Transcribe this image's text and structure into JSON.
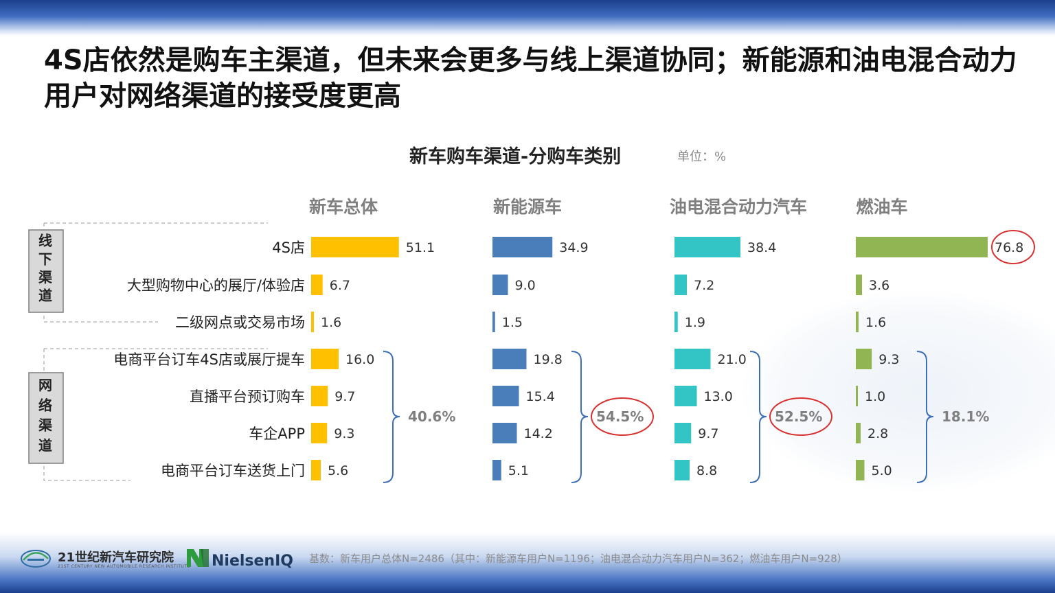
{
  "slide": {
    "title": "4S店依然是购车主渠道，但未来会更多与线上渠道协同；新能源和油电混合动力用户对网络渠道的接受度更高",
    "unit": "单位：%",
    "footnote": "基数：新车用户总体N=2486（其中：新能源车用户N=1196；油电混合动力汽车用户N=362；燃油车用户N=928）",
    "logo1_name": "21世纪新汽车研究院",
    "logo1_sub": "21ST CENTURY NEW AUTOMOBILE RESEARCH INSTITUTE",
    "logo2_name": "NielsenIQ"
  },
  "chart_data": {
    "type": "bar",
    "title": "新车购车渠道-分购车类别",
    "orientation": "horizontal",
    "groups": [
      {
        "label": "线下渠道",
        "categories": [
          "4S店",
          "大型购物中心的展厅/体验店",
          "二级网点或交易市场"
        ]
      },
      {
        "label": "网络渠道",
        "categories": [
          "电商平台订车4S店或展厅提车",
          "直播平台预订购车",
          "车企APP",
          "电商平台订车送货上门"
        ]
      }
    ],
    "categories": [
      "4S店",
      "大型购物中心的展厅/体验店",
      "二级网点或交易市场",
      "电商平台订车4S店或展厅提车",
      "直播平台预订购车",
      "车企APP",
      "电商平台订车送货上门"
    ],
    "series": [
      {
        "name": "新车总体",
        "color": "#ffc000",
        "values": [
          51.1,
          6.7,
          1.6,
          16.0,
          9.7,
          9.3,
          5.6
        ],
        "online_total": "40.6%",
        "highlight": false
      },
      {
        "name": "新能源车",
        "color": "#4a7ebb",
        "values": [
          34.9,
          9.0,
          1.5,
          19.8,
          15.4,
          14.2,
          5.1
        ],
        "online_total": "54.5%",
        "highlight": true
      },
      {
        "name": "油电混合动力汽车",
        "color": "#33c5c5",
        "values": [
          38.4,
          7.2,
          1.9,
          21.0,
          13.0,
          9.7,
          8.8
        ],
        "online_total": "52.5%",
        "highlight": true
      },
      {
        "name": "燃油车",
        "color": "#92b553",
        "values": [
          76.8,
          3.6,
          1.6,
          9.3,
          1.0,
          2.8,
          5.0
        ],
        "online_total": "18.1%",
        "highlight": false,
        "circled_value_index": 0
      }
    ]
  }
}
